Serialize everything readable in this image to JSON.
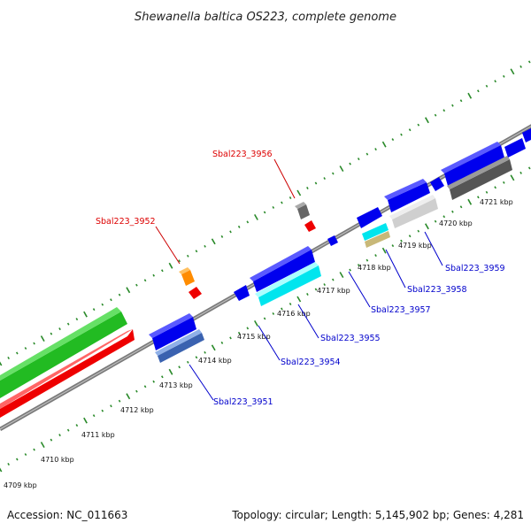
{
  "title": "Shewanella baltica OS223, complete genome",
  "footer": {
    "accession": "Accession: NC_011663",
    "summary": "Topology: circular; Length: 5,145,902 bp; Genes: 4,281"
  },
  "tick_labels": [
    "4709 kbp",
    "4710 kbp",
    "4711 kbp",
    "4712 kbp",
    "4713 kbp",
    "4714 kbp",
    "4715 kbp",
    "4716 kbp",
    "4717 kbp",
    "4718 kbp",
    "4719 kbp",
    "4720 kbp",
    "4721 kbp"
  ],
  "gene_labels": [
    {
      "text": "Sbal223_3956",
      "strand": "reverse",
      "color": "#dd0000"
    },
    {
      "text": "Sbal223_3952",
      "strand": "reverse",
      "color": "#dd0000"
    },
    {
      "text": "Sbal223_3959",
      "strand": "forward",
      "color": "#0000cc"
    },
    {
      "text": "Sbal223_3958",
      "strand": "forward",
      "color": "#0000cc"
    },
    {
      "text": "Sbal223_3957",
      "strand": "forward",
      "color": "#0000cc"
    },
    {
      "text": "Sbal223_3955",
      "strand": "forward",
      "color": "#0000cc"
    },
    {
      "text": "Sbal223_3954",
      "strand": "forward",
      "color": "#0000cc"
    },
    {
      "text": "Sbal223_3951",
      "strand": "forward",
      "color": "#0000cc"
    }
  ],
  "colors": {
    "backbone": "#8a8a8a",
    "tick": "#2a8a2a",
    "cds_forward": "#0000ee",
    "cds_reverse": "#ee0000",
    "rna": "#33cc33",
    "highlight_cyan": "#00e5ee",
    "highlight_gray": "#cfcfcf",
    "highlight_dark": "#666666",
    "highlight_orange": "#ff8c00",
    "highlight_khaki": "#c8b878",
    "highlight_steel": "#4a78c0"
  }
}
